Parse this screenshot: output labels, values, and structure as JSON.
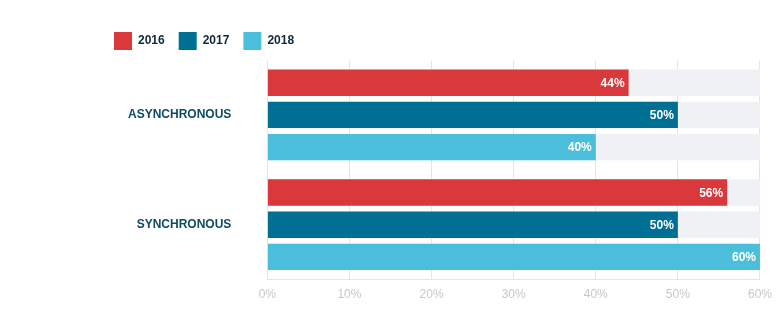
{
  "chart_data": {
    "type": "bar",
    "orientation": "horizontal",
    "categories": [
      "ASYNCHRONOUS",
      "SYNCHRONOUS"
    ],
    "series": [
      {
        "name": "2016",
        "color": "#d9393b",
        "values": [
          44,
          56
        ],
        "value_labels": [
          "44%",
          "56%"
        ]
      },
      {
        "name": "2017",
        "color": "#006f94",
        "values": [
          50,
          50
        ],
        "value_labels": [
          "50%",
          "50%"
        ]
      },
      {
        "name": "2018",
        "color": "#4bbedb",
        "values": [
          40,
          60
        ],
        "value_labels": [
          "40%",
          "60%"
        ]
      }
    ],
    "xlim": [
      0,
      60
    ],
    "xticks": [
      {
        "value": 0,
        "label": "0%"
      },
      {
        "value": 10,
        "label": "10%"
      },
      {
        "value": 20,
        "label": "20%"
      },
      {
        "value": 30,
        "label": "30%"
      },
      {
        "value": 40,
        "label": "40%"
      },
      {
        "value": 50,
        "label": "50%"
      },
      {
        "value": 60,
        "label": "60%"
      }
    ],
    "grid": true,
    "legend": "top-left",
    "data_labels": true
  }
}
